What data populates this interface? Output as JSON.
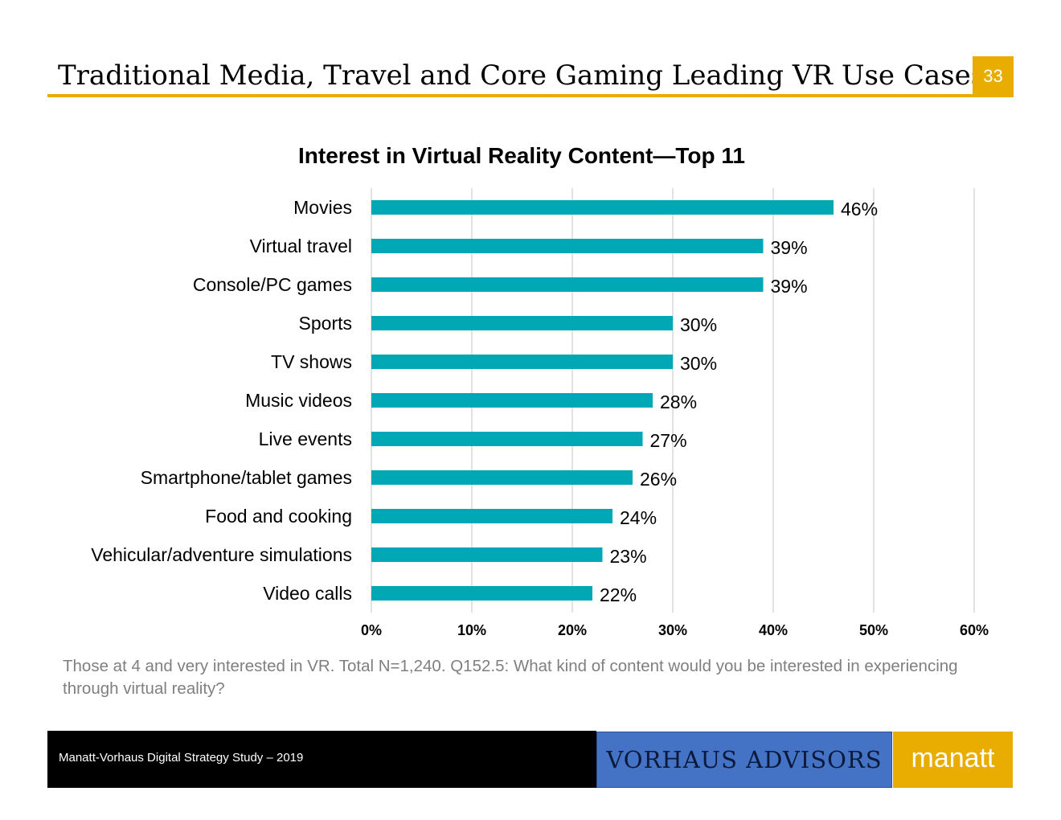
{
  "slide": {
    "title": "Traditional Media, Travel and Core Gaming Leading VR Use Cases",
    "page_number": "33"
  },
  "chart_data": {
    "type": "bar",
    "orientation": "horizontal",
    "title": "Interest in Virtual Reality Content—Top 11",
    "categories": [
      "Movies",
      "Virtual travel",
      "Console/PC games",
      "Sports",
      "TV shows",
      "Music videos",
      "Live events",
      "Smartphone/tablet games",
      "Food and cooking",
      "Vehicular/adventure simulations",
      "Video calls"
    ],
    "values": [
      46,
      39,
      39,
      30,
      30,
      28,
      27,
      26,
      24,
      23,
      22
    ],
    "value_labels": [
      "46%",
      "39%",
      "39%",
      "30%",
      "30%",
      "28%",
      "27%",
      "26%",
      "24%",
      "23%",
      "22%"
    ],
    "xlim": [
      0,
      60
    ],
    "x_ticks": [
      "0%",
      "10%",
      "20%",
      "30%",
      "40%",
      "50%",
      "60%"
    ],
    "gridlines": true,
    "bar_color": "#00a7b5",
    "xlabel": "",
    "ylabel": ""
  },
  "footnote": "Those at 4 and very interested in VR. Total N=1,240. Q152.5: What kind of content would you be interested in experiencing through virtual reality?",
  "footer": {
    "study": "Manatt-Vorhaus Digital Strategy Study – 2019",
    "logo_vorhaus": "VORHAUS ADVISORS",
    "logo_manatt": "manatt"
  },
  "colors": {
    "accent": "#e8ad00",
    "bar": "#00a7b5",
    "grid": "#d9d9d9",
    "vorhaus_bg": "#4472c4"
  }
}
